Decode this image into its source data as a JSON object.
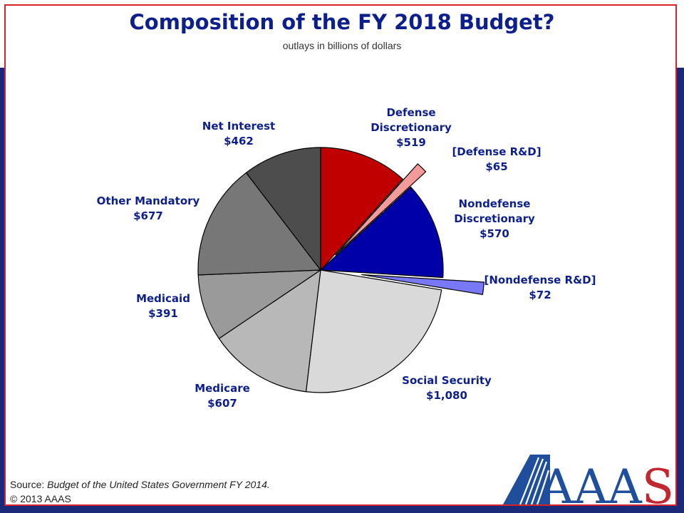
{
  "title": "Composition of the FY 2018 Budget?",
  "subtitle": "outlays in billions of dollars",
  "source_prefix": "Source: ",
  "source_title": "Budget of the United States Government FY 2014.",
  "copyright": "© 2013 AAAS",
  "logo_text": "AAAS",
  "logo_icon": "aaas-logo-icon",
  "chart_data": {
    "type": "pie",
    "title": "Composition of the FY 2018 Budget?",
    "subtitle": "outlays in billions of dollars",
    "unit": "billions of dollars",
    "start": "12 o'clock",
    "direction": "clockwise",
    "slices": [
      {
        "key": "defense",
        "lines": [
          "Defense",
          "Discretionary",
          "$519"
        ],
        "value": 519,
        "color": "#c00000",
        "exploded": false
      },
      {
        "key": "defense_rd",
        "lines": [
          "[Defense R&D]",
          "$65"
        ],
        "value": 65,
        "color": "#f59a9a",
        "exploded": true
      },
      {
        "key": "nondefense",
        "lines": [
          "Nondefense",
          "Discretionary",
          "$570"
        ],
        "value": 570,
        "color": "#0000a8",
        "exploded": false
      },
      {
        "key": "nondefense_rd",
        "lines": [
          "[Nondefense R&D]",
          "$72"
        ],
        "value": 72,
        "color": "#7878f8",
        "exploded": true
      },
      {
        "key": "social_security",
        "lines": [
          "Social Security",
          "$1,080"
        ],
        "value": 1080,
        "color": "#d9d9d9",
        "exploded": false
      },
      {
        "key": "medicare",
        "lines": [
          "Medicare",
          "$607"
        ],
        "value": 607,
        "color": "#b8b8b8",
        "exploded": false
      },
      {
        "key": "medicaid",
        "lines": [
          "Medicaid",
          "$391"
        ],
        "value": 391,
        "color": "#9a9a9a",
        "exploded": false
      },
      {
        "key": "other_mandatory",
        "lines": [
          "Other Mandatory",
          "$677"
        ],
        "value": 677,
        "color": "#777777",
        "exploded": false
      },
      {
        "key": "net_interest",
        "lines": [
          "Net Interest",
          "$462"
        ],
        "value": 462,
        "color": "#4d4d4d",
        "exploded": false
      }
    ]
  }
}
